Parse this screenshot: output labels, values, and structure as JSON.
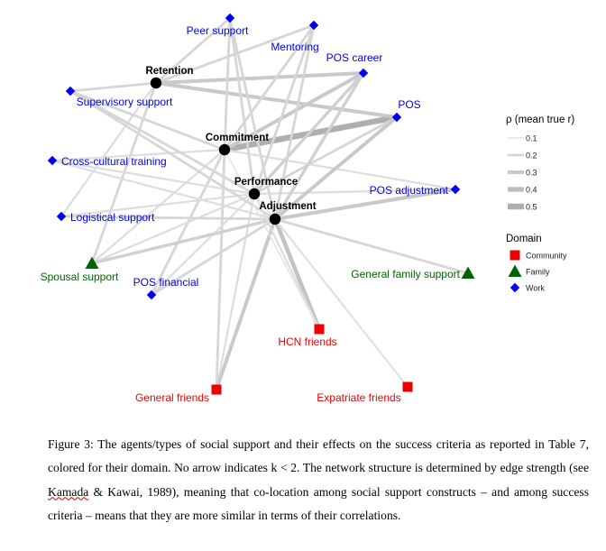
{
  "figure": {
    "nodes": [
      {
        "id": "peer",
        "label": "Peer support",
        "domain": "Work"
      },
      {
        "id": "mentoring",
        "label": "Mentoring",
        "domain": "Work"
      },
      {
        "id": "poscareer",
        "label": "POS career",
        "domain": "Work"
      },
      {
        "id": "retention",
        "label": "Retention",
        "domain": "Criterion"
      },
      {
        "id": "supervisory",
        "label": "Supervisory support",
        "domain": "Work"
      },
      {
        "id": "pos",
        "label": "POS",
        "domain": "Work"
      },
      {
        "id": "commitment",
        "label": "Commitment",
        "domain": "Criterion"
      },
      {
        "id": "crosscultural",
        "label": "Cross-cultural training",
        "domain": "Work"
      },
      {
        "id": "performance",
        "label": "Performance",
        "domain": "Criterion"
      },
      {
        "id": "posadjustment",
        "label": "POS adjustment",
        "domain": "Work"
      },
      {
        "id": "adjustment",
        "label": "Adjustment",
        "domain": "Criterion"
      },
      {
        "id": "logistical",
        "label": "Logistical support",
        "domain": "Work"
      },
      {
        "id": "spousal",
        "label": "Spousal support",
        "domain": "Family"
      },
      {
        "id": "generalfamily",
        "label": "General family support",
        "domain": "Family"
      },
      {
        "id": "posfinancial",
        "label": "POS financial",
        "domain": "Work"
      },
      {
        "id": "hcn",
        "label": "HCN friends",
        "domain": "Community"
      },
      {
        "id": "generalfriends",
        "label": "General friends",
        "domain": "Community"
      },
      {
        "id": "expatriate",
        "label": "Expatriate friends",
        "domain": "Community"
      }
    ],
    "edges": [
      {
        "from": "commitment",
        "to": "pos",
        "rho": 0.5
      },
      {
        "from": "retention",
        "to": "poscareer",
        "rho": 0.3
      },
      {
        "from": "retention",
        "to": "pos",
        "rho": 0.3
      },
      {
        "from": "retention",
        "to": "peer",
        "rho": 0.2
      },
      {
        "from": "retention",
        "to": "supervisory",
        "rho": 0.2
      },
      {
        "from": "retention",
        "to": "mentoring",
        "rho": 0.2
      },
      {
        "from": "retention",
        "to": "logistical",
        "rho": 0.15
      },
      {
        "from": "retention",
        "to": "spousal",
        "rho": 0.2
      },
      {
        "from": "commitment",
        "to": "poscareer",
        "rho": 0.3
      },
      {
        "from": "commitment",
        "to": "peer",
        "rho": 0.2
      },
      {
        "from": "commitment",
        "to": "mentoring",
        "rho": 0.2
      },
      {
        "from": "commitment",
        "to": "supervisory",
        "rho": 0.2
      },
      {
        "from": "commitment",
        "to": "crosscultural",
        "rho": 0.15
      },
      {
        "from": "commitment",
        "to": "posadjustment",
        "rho": 0.15
      },
      {
        "from": "commitment",
        "to": "posfinancial",
        "rho": 0.2
      },
      {
        "from": "commitment",
        "to": "spousal",
        "rho": 0.15
      },
      {
        "from": "commitment",
        "to": "generalfriends",
        "rho": 0.2
      },
      {
        "from": "performance",
        "to": "peer",
        "rho": 0.2
      },
      {
        "from": "performance",
        "to": "mentoring",
        "rho": 0.2
      },
      {
        "from": "performance",
        "to": "poscareer",
        "rho": 0.25
      },
      {
        "from": "performance",
        "to": "supervisory",
        "rho": 0.2
      },
      {
        "from": "performance",
        "to": "pos",
        "rho": 0.2
      },
      {
        "from": "performance",
        "to": "posadjustment",
        "rho": 0.15
      },
      {
        "from": "performance",
        "to": "crosscultural",
        "rho": 0.15
      },
      {
        "from": "performance",
        "to": "logistical",
        "rho": 0.15
      },
      {
        "from": "performance",
        "to": "spousal",
        "rho": 0.15
      },
      {
        "from": "performance",
        "to": "posfinancial",
        "rho": 0.15
      },
      {
        "from": "performance",
        "to": "generalfriends",
        "rho": 0.15
      },
      {
        "from": "adjustment",
        "to": "posadjustment",
        "rho": 0.3
      },
      {
        "from": "adjustment",
        "to": "pos",
        "rho": 0.3
      },
      {
        "from": "adjustment",
        "to": "poscareer",
        "rho": 0.25
      },
      {
        "from": "adjustment",
        "to": "peer",
        "rho": 0.2
      },
      {
        "from": "adjustment",
        "to": "mentoring",
        "rho": 0.2
      },
      {
        "from": "adjustment",
        "to": "supervisory",
        "rho": 0.2
      },
      {
        "from": "adjustment",
        "to": "crosscultural",
        "rho": 0.15
      },
      {
        "from": "adjustment",
        "to": "logistical",
        "rho": 0.2
      },
      {
        "from": "adjustment",
        "to": "spousal",
        "rho": 0.25
      },
      {
        "from": "adjustment",
        "to": "generalfamily",
        "rho": 0.2
      },
      {
        "from": "adjustment",
        "to": "posfinancial",
        "rho": 0.2
      },
      {
        "from": "adjustment",
        "to": "hcn",
        "rho": 0.35
      },
      {
        "from": "adjustment",
        "to": "generalfriends",
        "rho": 0.3
      },
      {
        "from": "adjustment",
        "to": "expatriate",
        "rho": 0.15
      },
      {
        "from": "performance",
        "to": "hcn",
        "rho": 0.15
      },
      {
        "from": "commitment",
        "to": "hcn",
        "rho": 0.1
      },
      {
        "from": "performance",
        "to": "expatriate",
        "rho": 0.1
      }
    ]
  },
  "legend": {
    "rho_title": "ρ (mean true r)",
    "rho_items": [
      {
        "label": "0.1",
        "rho": 0.1
      },
      {
        "label": "0.2",
        "rho": 0.2
      },
      {
        "label": "0.3",
        "rho": 0.3
      },
      {
        "label": "0.4",
        "rho": 0.4
      },
      {
        "label": "0.5",
        "rho": 0.5
      }
    ],
    "domain_title": "Domain",
    "domain_items": [
      {
        "label": "Community",
        "domain": "Community"
      },
      {
        "label": "Family",
        "domain": "Family"
      },
      {
        "label": "Work",
        "domain": "Work"
      }
    ]
  },
  "colors": {
    "Community": "#ee0000",
    "Family": "#006400",
    "Work": "#0000ee",
    "Criterion": "#000000",
    "edge": "#c8c8c8"
  },
  "caption": {
    "text_before": "Figure 3: The agents/types of social support and their effects on the success criteria as reported in Table 7, colored for their domain. No arrow indicates k < 2. The network structure is determined by edge strength (see ",
    "citation": "Kamada",
    "text_after": " & Kawai, 1989), meaning that co-location among social support constructs – and among success criteria – means that they are more similar in terms of their correlations."
  }
}
